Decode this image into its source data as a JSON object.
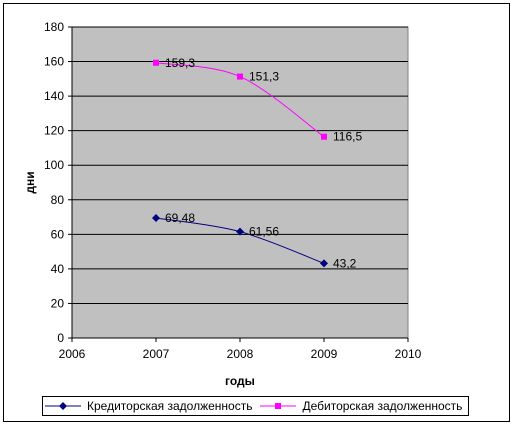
{
  "chart_data": {
    "type": "line",
    "title": "",
    "xlabel": "годы",
    "ylabel": "дни",
    "xlim": [
      2006,
      2010
    ],
    "ylim": [
      0,
      180
    ],
    "x_ticks": [
      "2006",
      "2007",
      "2008",
      "2009",
      "2010"
    ],
    "y_ticks": [
      "0",
      "20",
      "40",
      "60",
      "80",
      "100",
      "120",
      "140",
      "160",
      "180"
    ],
    "grid": true,
    "legend_position": "bottom",
    "plot_background": "#c0c0c0",
    "series": [
      {
        "name": "Кредиторская задолженность",
        "color": "#000080",
        "marker": "diamond",
        "x": [
          2007,
          2008,
          2009
        ],
        "y": [
          69.48,
          61.56,
          43.2
        ],
        "labels": [
          "69,48",
          "61,56",
          "43,2"
        ]
      },
      {
        "name": "Дебиторская задолженность",
        "color": "#ff00ff",
        "marker": "square",
        "x": [
          2007,
          2008,
          2009
        ],
        "y": [
          159.3,
          151.3,
          116.5
        ],
        "labels": [
          "159,3",
          "151,3",
          "116,5"
        ]
      }
    ]
  }
}
